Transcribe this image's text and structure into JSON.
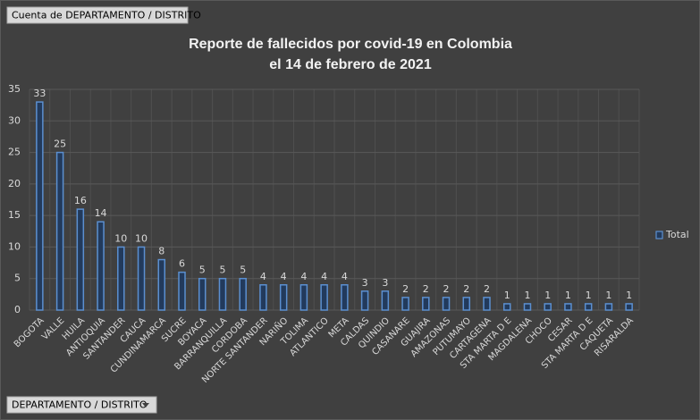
{
  "chart_data": {
    "type": "bar",
    "title": "Reporte de fallecidos por covid-19 en Colombia",
    "subtitle": "el 14 de febrero de 2021",
    "value_field_button": "Cuenta de DEPARTAMENTO / DISTRITO",
    "axis_field_button": "DEPARTAMENTO / DISTRITO",
    "categories": [
      "BOGOTA",
      "VALLE",
      "HUILA",
      "ANTIOQUIA",
      "SANTANDER",
      "CAUCA",
      "CUNDINAMARCA",
      "SUCRE",
      "BOYACA",
      "BARRANQUILLA",
      "CORDOBA",
      "NORTE SANTANDER",
      "NARIÑO",
      "TOLIMA",
      "ATLANTICO",
      "META",
      "CALDAS",
      "QUINDIO",
      "CASANARE",
      "GUAJIRA",
      "AMAZONAS",
      "PUTUMAYO",
      "CARTAGENA",
      "STA MARTA D E",
      "MAGDALENA",
      "CHOCO",
      "CESAR",
      "STA MARTA D E",
      "CAQUETA",
      "RISARALDA"
    ],
    "series": [
      {
        "name": "Total",
        "color": "#5b8fd0",
        "values": [
          33,
          25,
          16,
          14,
          10,
          10,
          8,
          6,
          5,
          5,
          5,
          4,
          4,
          4,
          4,
          4,
          3,
          3,
          2,
          2,
          2,
          2,
          2,
          1,
          1,
          1,
          1,
          1,
          1,
          1
        ]
      }
    ],
    "ylim": [
      0,
      35
    ],
    "yticks": [
      0,
      5,
      10,
      15,
      20,
      25,
      30,
      35
    ],
    "grid": true,
    "legend": "right"
  }
}
